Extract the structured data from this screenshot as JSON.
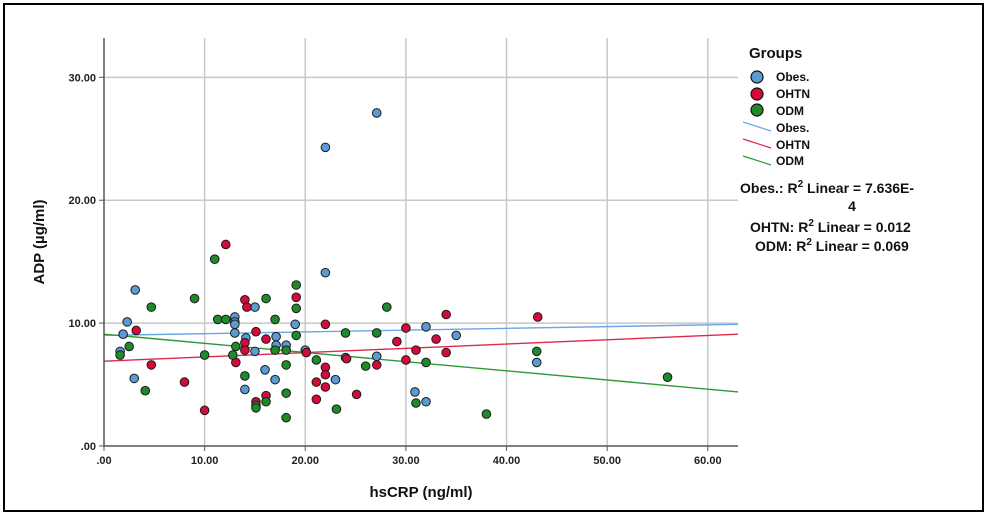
{
  "chart_data": {
    "type": "scatter",
    "xlabel": "hsCRP (ng/ml)",
    "ylabel": "ADP (µg/ml)",
    "xlim": [
      0,
      63
    ],
    "ylim": [
      0,
      33.2
    ],
    "xticks": [
      0,
      10,
      20,
      30,
      40,
      50,
      60
    ],
    "xtick_labels": [
      ".00",
      "10.00",
      "20.00",
      "30.00",
      "40.00",
      "50.00",
      "60.00"
    ],
    "yticks": [
      0,
      10,
      20,
      30
    ],
    "ytick_labels": [
      ".00",
      "10.00",
      "20.00",
      "30.00"
    ],
    "grid": true,
    "legend": {
      "title": "Groups",
      "placement": "right",
      "markers": [
        "Obes.",
        "OHTN",
        "ODM"
      ],
      "lines": [
        "Obes.",
        "OHTN",
        "ODM"
      ]
    },
    "annotations": {
      "obes": {
        "prefix": "Obes.: R",
        "sup": "2",
        "suffix": " Linear = 7.636E-",
        "cont": "4"
      },
      "ohtn": {
        "prefix": "OHTN: R",
        "sup": "2",
        "suffix": " Linear = 0.012"
      },
      "odm": {
        "prefix": "ODM: R",
        "sup": "2",
        "suffix": " Linear = 0.069"
      }
    },
    "series": [
      {
        "name": "Obes.",
        "color": "#5b9bd5",
        "fit": {
          "y_at_0": 9.0,
          "y_at_63": 9.9,
          "line_color": "#6aa6e8"
        },
        "points": [
          [
            27.1,
            27.1
          ],
          [
            22.0,
            24.3
          ],
          [
            22.0,
            14.1
          ],
          [
            3.1,
            12.7
          ],
          [
            2.3,
            10.1
          ],
          [
            1.9,
            9.1
          ],
          [
            13.0,
            10.5
          ],
          [
            13.0,
            10.1
          ],
          [
            13.0,
            9.9
          ],
          [
            15.0,
            11.3
          ],
          [
            19.0,
            9.9
          ],
          [
            32.0,
            9.7
          ],
          [
            35.0,
            9.0
          ],
          [
            13.0,
            9.2
          ],
          [
            14.1,
            8.8
          ],
          [
            17.1,
            8.9
          ],
          [
            17.1,
            8.2
          ],
          [
            18.1,
            8.2
          ],
          [
            20.0,
            7.8
          ],
          [
            15.0,
            7.7
          ],
          [
            16.0,
            6.2
          ],
          [
            24.0,
            7.2
          ],
          [
            27.1,
            7.3
          ],
          [
            43.0,
            6.8
          ],
          [
            1.6,
            7.7
          ],
          [
            3.0,
            5.5
          ],
          [
            14.0,
            4.6
          ],
          [
            17.0,
            5.4
          ],
          [
            30.9,
            4.4
          ],
          [
            32.0,
            3.6
          ],
          [
            23.0,
            5.4
          ]
        ]
      },
      {
        "name": "OHTN",
        "color": "#d6093a",
        "fit": {
          "y_at_0": 6.9,
          "y_at_63": 9.1,
          "line_color": "#e0284f"
        },
        "points": [
          [
            12.1,
            16.4
          ],
          [
            14.0,
            11.9
          ],
          [
            14.2,
            11.3
          ],
          [
            19.1,
            12.1
          ],
          [
            22.0,
            9.9
          ],
          [
            34.0,
            10.7
          ],
          [
            43.1,
            10.5
          ],
          [
            3.2,
            9.4
          ],
          [
            15.1,
            9.3
          ],
          [
            16.1,
            8.7
          ],
          [
            14.0,
            8.4
          ],
          [
            14.0,
            7.8
          ],
          [
            20.1,
            7.6
          ],
          [
            30.0,
            9.6
          ],
          [
            29.1,
            8.5
          ],
          [
            33.0,
            8.7
          ],
          [
            31.0,
            7.8
          ],
          [
            34.0,
            7.6
          ],
          [
            30.0,
            7.0
          ],
          [
            27.1,
            6.6
          ],
          [
            24.1,
            7.1
          ],
          [
            22.0,
            6.4
          ],
          [
            22.0,
            5.8
          ],
          [
            22.0,
            4.8
          ],
          [
            21.1,
            5.2
          ],
          [
            13.1,
            6.8
          ],
          [
            4.7,
            6.6
          ],
          [
            8.0,
            5.2
          ],
          [
            16.1,
            4.1
          ],
          [
            21.1,
            3.8
          ],
          [
            25.1,
            4.2
          ],
          [
            10.0,
            2.9
          ],
          [
            15.1,
            3.6
          ]
        ]
      },
      {
        "name": "ODM",
        "color": "#1f8a2a",
        "fit": {
          "y_at_0": 9.1,
          "y_at_63": 4.4,
          "line_color": "#2e9a36"
        },
        "points": [
          [
            11.0,
            15.2
          ],
          [
            19.1,
            13.1
          ],
          [
            9.0,
            12.0
          ],
          [
            4.7,
            11.3
          ],
          [
            16.1,
            12.0
          ],
          [
            19.1,
            11.2
          ],
          [
            28.1,
            11.3
          ],
          [
            17.0,
            10.3
          ],
          [
            11.3,
            10.3
          ],
          [
            12.1,
            10.3
          ],
          [
            19.1,
            9.0
          ],
          [
            24.0,
            9.2
          ],
          [
            27.1,
            9.2
          ],
          [
            2.5,
            8.1
          ],
          [
            13.1,
            8.1
          ],
          [
            1.6,
            7.4
          ],
          [
            10.0,
            7.4
          ],
          [
            12.8,
            7.4
          ],
          [
            17.0,
            7.8
          ],
          [
            18.1,
            7.8
          ],
          [
            21.1,
            7.0
          ],
          [
            26.0,
            6.5
          ],
          [
            32.0,
            6.8
          ],
          [
            43.0,
            7.7
          ],
          [
            56.0,
            5.6
          ],
          [
            14.0,
            5.7
          ],
          [
            18.1,
            6.6
          ],
          [
            4.1,
            4.5
          ],
          [
            16.1,
            3.6
          ],
          [
            15.1,
            3.3
          ],
          [
            15.1,
            3.1
          ],
          [
            18.1,
            4.3
          ],
          [
            18.1,
            2.3
          ],
          [
            23.1,
            3.0
          ],
          [
            31.0,
            3.5
          ],
          [
            38.0,
            2.6
          ]
        ]
      }
    ]
  }
}
